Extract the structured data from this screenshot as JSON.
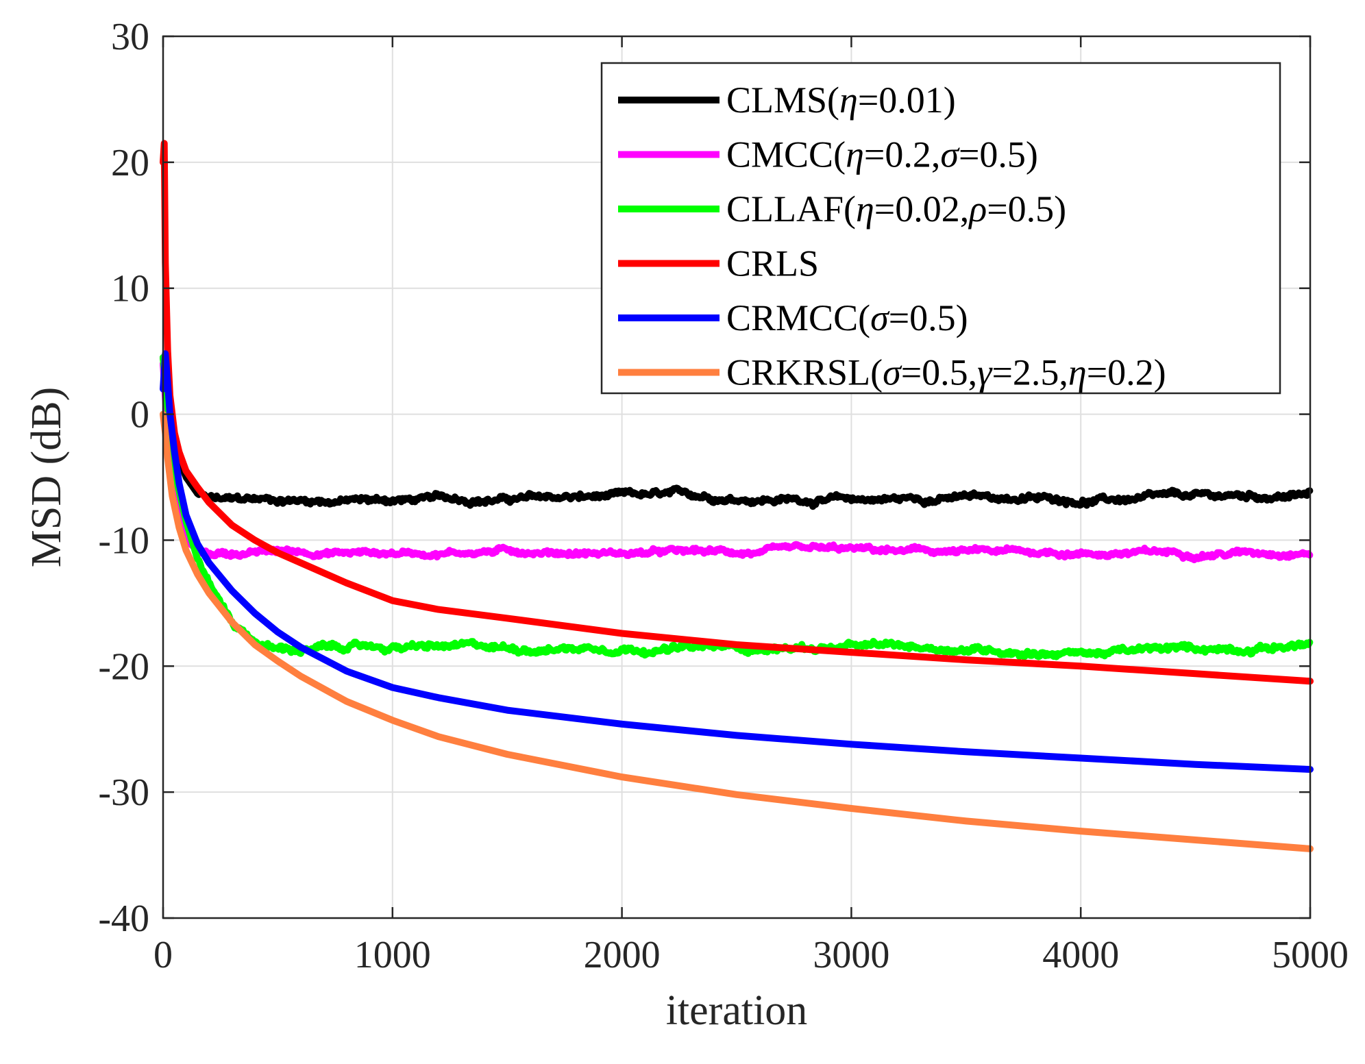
{
  "chart_data": {
    "type": "line",
    "title": "",
    "xlabel": "iteration",
    "ylabel": "MSD (dB)",
    "xlim": [
      0,
      5000
    ],
    "ylim": [
      -40,
      30
    ],
    "xticks": [
      0,
      1000,
      2000,
      3000,
      4000,
      5000
    ],
    "xtick_labels": [
      "0",
      "1000",
      "2000",
      "3000",
      "4000",
      "5000"
    ],
    "yticks": [
      30,
      20,
      10,
      0,
      -10,
      -20,
      -30,
      -40
    ],
    "ytick_labels": [
      "30",
      "20",
      "10",
      "0",
      "-10",
      "-20",
      "-30",
      "-40"
    ],
    "grid": true,
    "legend_position": "top-right",
    "series": [
      {
        "name": "CLMS(η=0.01)",
        "legend_parts": [
          [
            "CLMS(",
            false
          ],
          [
            "η",
            true
          ],
          [
            "=0.01)",
            false
          ]
        ],
        "color": "#000000",
        "noise": 0.35,
        "x": [
          0,
          20,
          50,
          100,
          150,
          200,
          300,
          500,
          800,
          1000,
          1500,
          2000,
          2500,
          3000,
          3500,
          4000,
          4500,
          5000
        ],
        "y": [
          4.5,
          1.5,
          -2.5,
          -5.0,
          -6.3,
          -6.7,
          -6.9,
          -6.8,
          -6.8,
          -6.8,
          -6.7,
          -6.6,
          -6.6,
          -6.8,
          -6.6,
          -6.8,
          -6.7,
          -6.4
        ]
      },
      {
        "name": "CMCC(η=0.2,σ=0.5)",
        "legend_parts": [
          [
            "CMCC(",
            false
          ],
          [
            "η",
            true
          ],
          [
            "=0.2,",
            false
          ],
          [
            "σ",
            true
          ],
          [
            "=0.5)",
            false
          ]
        ],
        "color": "#ff00ff",
        "noise": 0.3,
        "x": [
          0,
          20,
          50,
          80,
          100,
          150,
          200,
          300,
          500,
          1000,
          1500,
          2000,
          2500,
          3000,
          3500,
          4000,
          4500,
          5000
        ],
        "y": [
          4.0,
          -1.5,
          -5.5,
          -8.5,
          -10.0,
          -10.8,
          -11.0,
          -11.0,
          -10.9,
          -11.0,
          -10.8,
          -11.0,
          -11.0,
          -10.9,
          -11.0,
          -11.0,
          -11.0,
          -10.8
        ]
      },
      {
        "name": "CLLAF(η=0.02,ρ=0.5)",
        "legend_parts": [
          [
            "CLLAF(",
            false
          ],
          [
            "η",
            true
          ],
          [
            "=0.02,",
            false
          ],
          [
            "ρ",
            true
          ],
          [
            "=0.5)",
            false
          ]
        ],
        "color": "#00ff00",
        "noise": 0.35,
        "x": [
          0,
          20,
          50,
          100,
          150,
          200,
          300,
          400,
          500,
          600,
          800,
          1000,
          1500,
          2000,
          2500,
          3000,
          3500,
          4000,
          4500,
          5000
        ],
        "y": [
          4.5,
          0.5,
          -4.5,
          -8.5,
          -11.5,
          -13.5,
          -16.5,
          -18.0,
          -18.6,
          -18.7,
          -18.5,
          -18.5,
          -18.6,
          -18.4,
          -18.6,
          -18.5,
          -18.6,
          -18.9,
          -18.7,
          -18.2
        ]
      },
      {
        "name": "CRLS",
        "legend_parts": [
          [
            "CRLS",
            false
          ]
        ],
        "color": "#ff0000",
        "noise": 0,
        "x": [
          0,
          5,
          10,
          20,
          30,
          50,
          70,
          100,
          150,
          200,
          300,
          400,
          500,
          600,
          800,
          1000,
          1200,
          1500,
          2000,
          2500,
          3000,
          3500,
          4000,
          4500,
          5000
        ],
        "y": [
          20.0,
          21.5,
          12.0,
          5.0,
          1.5,
          -1.5,
          -3.0,
          -4.5,
          -5.8,
          -7.0,
          -8.8,
          -10.0,
          -11.0,
          -11.8,
          -13.4,
          -14.8,
          -15.5,
          -16.2,
          -17.4,
          -18.3,
          -18.9,
          -19.5,
          -20.0,
          -20.6,
          -21.2
        ]
      },
      {
        "name": "CRMCC(σ=0.5)",
        "legend_parts": [
          [
            "CRMCC(",
            false
          ],
          [
            "σ",
            true
          ],
          [
            "=0.5)",
            false
          ]
        ],
        "color": "#0000ff",
        "noise": 0,
        "x": [
          0,
          10,
          20,
          30,
          50,
          70,
          100,
          150,
          200,
          300,
          400,
          500,
          600,
          800,
          1000,
          1200,
          1500,
          2000,
          2500,
          3000,
          3500,
          4000,
          4500,
          5000
        ],
        "y": [
          2.0,
          4.8,
          2.5,
          0.0,
          -3.0,
          -5.5,
          -8.0,
          -10.3,
          -11.8,
          -14.0,
          -15.8,
          -17.3,
          -18.5,
          -20.4,
          -21.7,
          -22.5,
          -23.5,
          -24.6,
          -25.5,
          -26.2,
          -26.8,
          -27.3,
          -27.8,
          -28.2
        ]
      },
      {
        "name": "CRKRSL(σ=0.5,γ=2.5,η=0.2)",
        "legend_parts": [
          [
            "CRKRSL(",
            false
          ],
          [
            "σ",
            true
          ],
          [
            "=0.5,",
            false
          ],
          [
            "γ",
            true
          ],
          [
            "=2.5,",
            false
          ],
          [
            "η",
            true
          ],
          [
            "=0.2)",
            false
          ]
        ],
        "color": "#ff7f3f",
        "noise": 0,
        "x": [
          0,
          10,
          20,
          40,
          70,
          100,
          150,
          200,
          300,
          400,
          500,
          600,
          800,
          1000,
          1200,
          1500,
          2000,
          2500,
          3000,
          3500,
          4000,
          4500,
          5000
        ],
        "y": [
          0.0,
          -1.5,
          -3.5,
          -6.5,
          -9.0,
          -10.8,
          -12.7,
          -14.2,
          -16.5,
          -18.3,
          -19.6,
          -20.8,
          -22.8,
          -24.3,
          -25.6,
          -27.0,
          -28.8,
          -30.2,
          -31.3,
          -32.3,
          -33.1,
          -33.8,
          -34.5
        ]
      }
    ]
  }
}
